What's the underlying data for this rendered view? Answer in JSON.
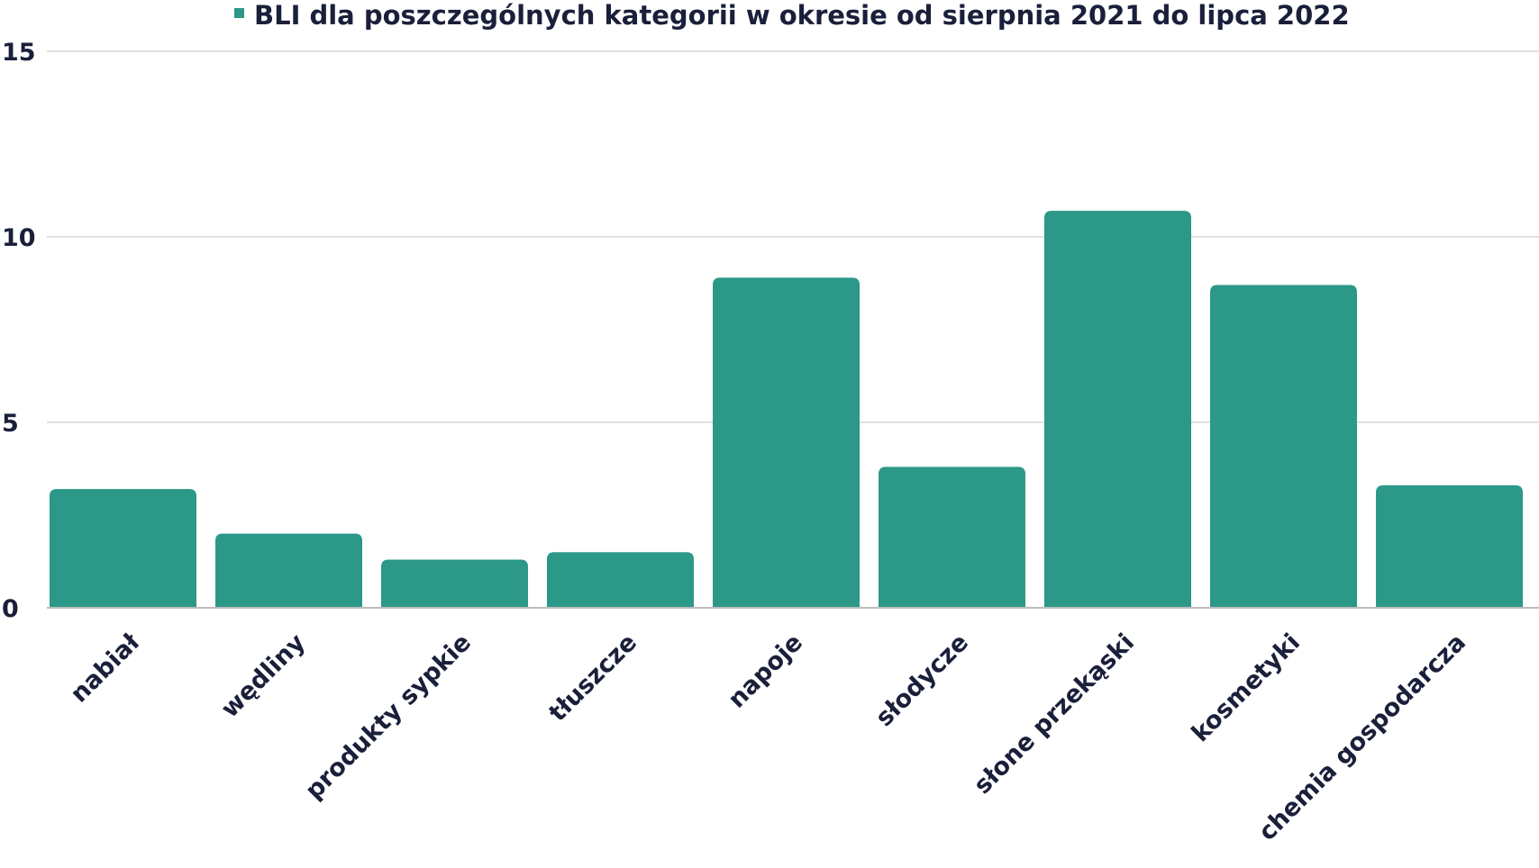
{
  "chart_data": {
    "type": "bar",
    "categories": [
      "nabiał",
      "wędliny",
      "produkty sypkie",
      "tłuszcze",
      "napoje",
      "słodycze",
      "słone przekąski",
      "kosmetyki",
      "chemia gospodarcza"
    ],
    "series": [
      {
        "name": "BLI dla poszczególnych kategorii w okresie od sierpnia 2021 do lipca 2022",
        "values": [
          3.2,
          2.0,
          1.3,
          1.5,
          8.9,
          3.8,
          10.7,
          8.7,
          3.3
        ]
      }
    ],
    "yticks": [
      0,
      5,
      10,
      15
    ],
    "ylim": [
      0,
      15
    ],
    "grid": true,
    "legend_position": "top",
    "bar_color": "#2c9887",
    "text_color": "#1a1f3a"
  }
}
